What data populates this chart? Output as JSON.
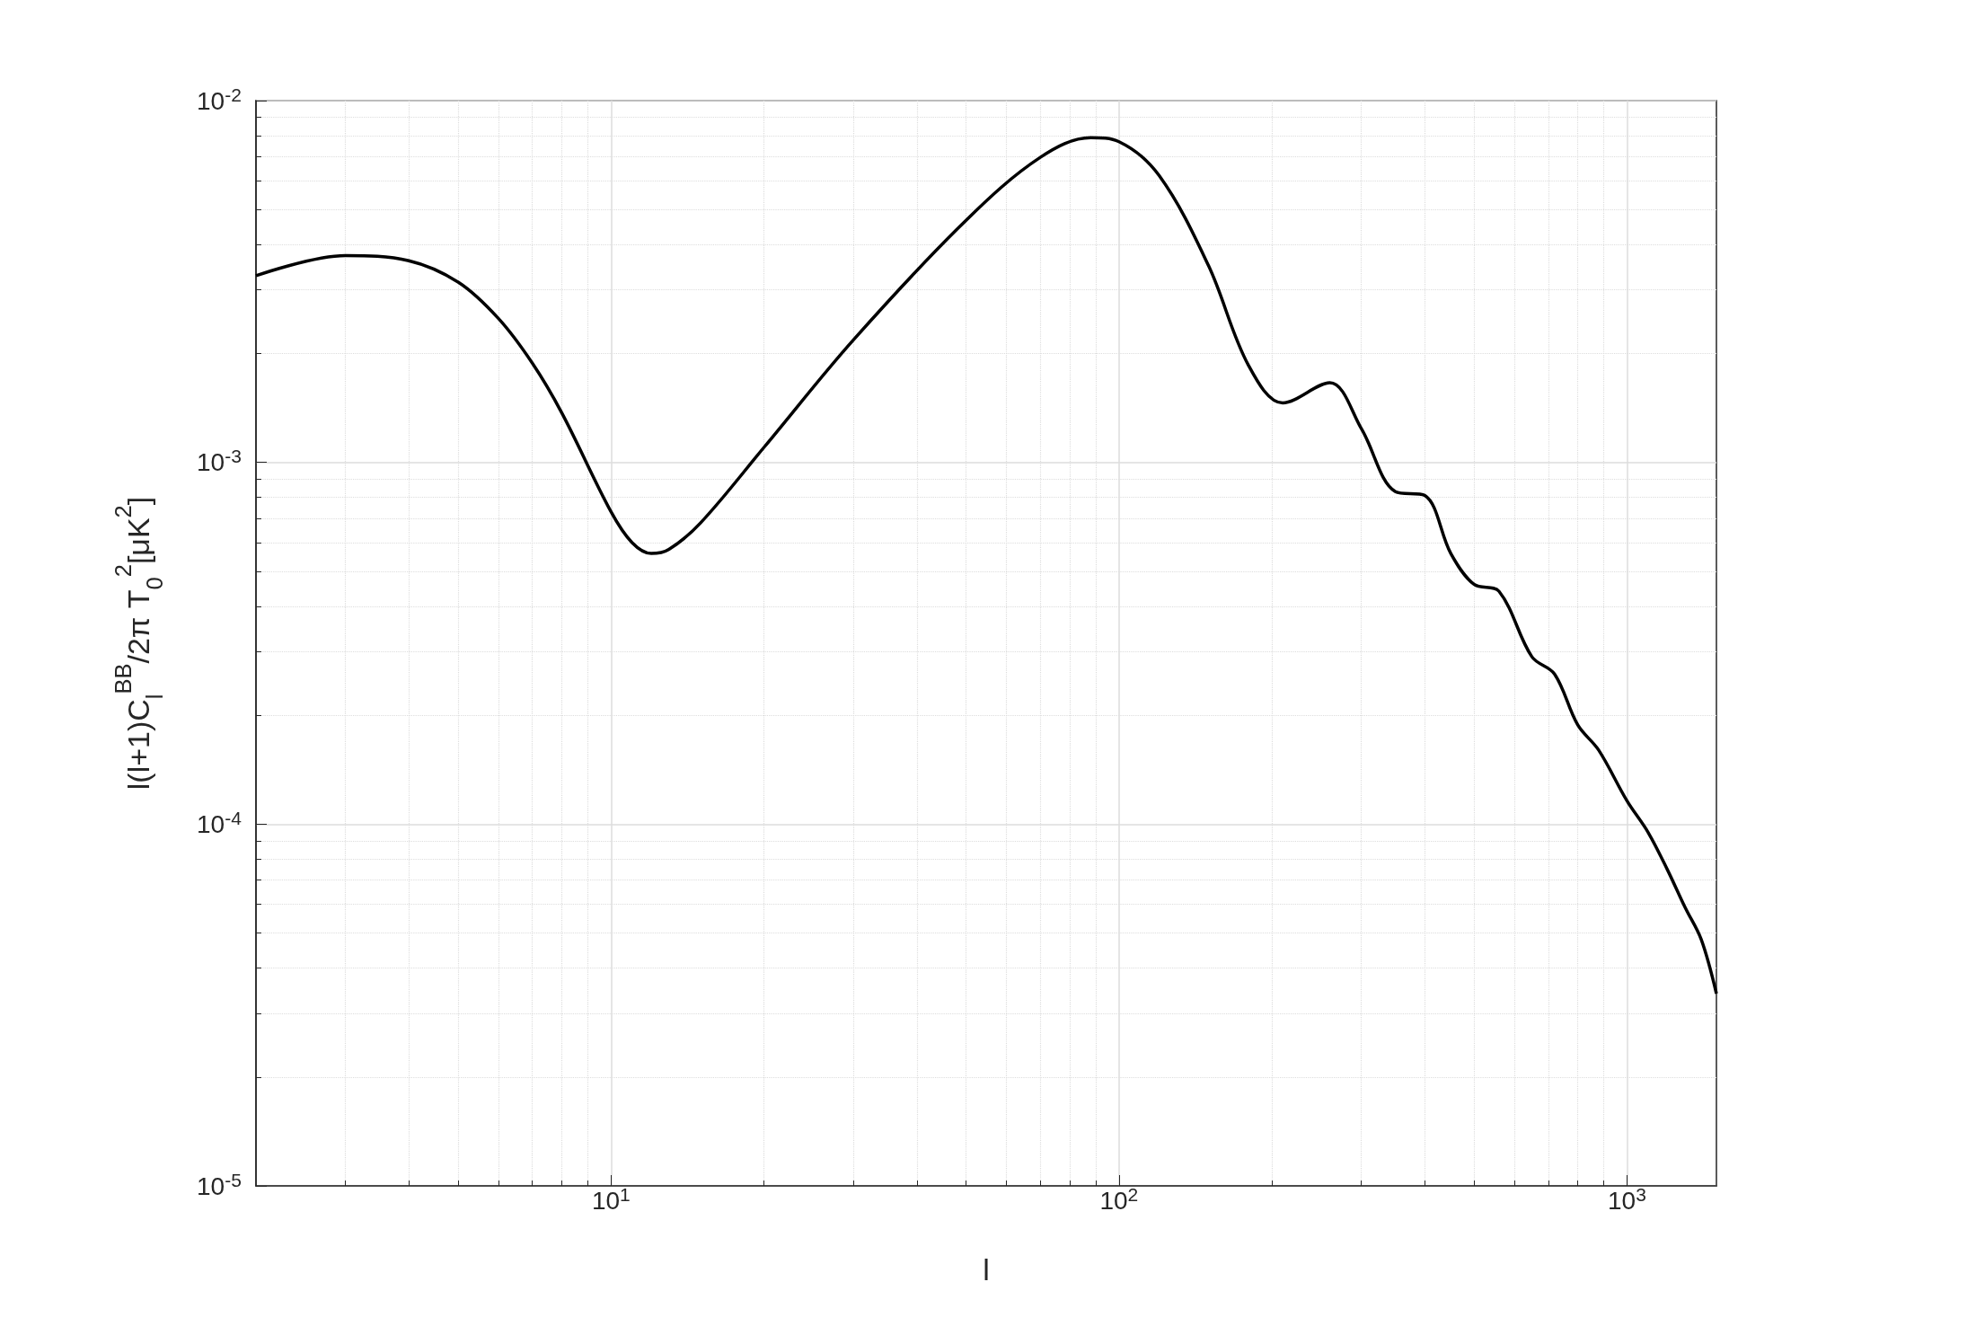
{
  "chart_data": {
    "type": "line",
    "xlabel": "l",
    "ylabel": "l(l+1)C$_{l}$$^{BB}$/2π T$_{0}$$^{2}$[μK$^{2}$]",
    "log": "xy",
    "grid": true,
    "marker": "none",
    "line_style": "solid",
    "xlim": [
      2,
      1500
    ],
    "ylim": [
      1e-05,
      0.01
    ],
    "xticks": [
      {
        "value": 10,
        "label": "10$^{1}$"
      },
      {
        "value": 100,
        "label": "10$^{2}$"
      },
      {
        "value": 1000,
        "label": "10$^{3}$"
      }
    ],
    "yticks": [
      {
        "value": 1e-05,
        "label": "10$^{-5}$"
      },
      {
        "value": 0.0001,
        "label": "10$^{-4}$"
      },
      {
        "value": 0.001,
        "label": "10$^{-3}$"
      },
      {
        "value": 0.01,
        "label": "10$^{-2}$"
      }
    ],
    "x": [
      2,
      3,
      4,
      5,
      6,
      7,
      8,
      10,
      11,
      12,
      13,
      15,
      20,
      30,
      50,
      70,
      88,
      100,
      120,
      150,
      180,
      210,
      260,
      300,
      350,
      400,
      450,
      500,
      560,
      650,
      720,
      800,
      880,
      1000,
      1100,
      1200,
      1300,
      1400,
      1500
    ],
    "series": [
      {
        "color": "#000000",
        "values": [
          0.00328,
          0.00373,
          0.00361,
          0.00315,
          0.0025,
          0.00188,
          0.00137,
          0.00073,
          0.0006,
          0.00056,
          0.000575,
          0.00068,
          0.0011,
          0.00218,
          0.00467,
          0.00697,
          0.0079,
          0.0077,
          0.0062,
          0.0035,
          0.00185,
          0.00146,
          0.00166,
          0.00124,
          0.00083,
          0.00081,
          0.00056,
          0.00046,
          0.00044,
          0.00029,
          0.00026,
          0.000188,
          0.00016,
          0.000116,
          9.5e-05,
          7.5e-05,
          5.9e-05,
          4.8e-05,
          3.4e-05
        ]
      }
    ]
  }
}
